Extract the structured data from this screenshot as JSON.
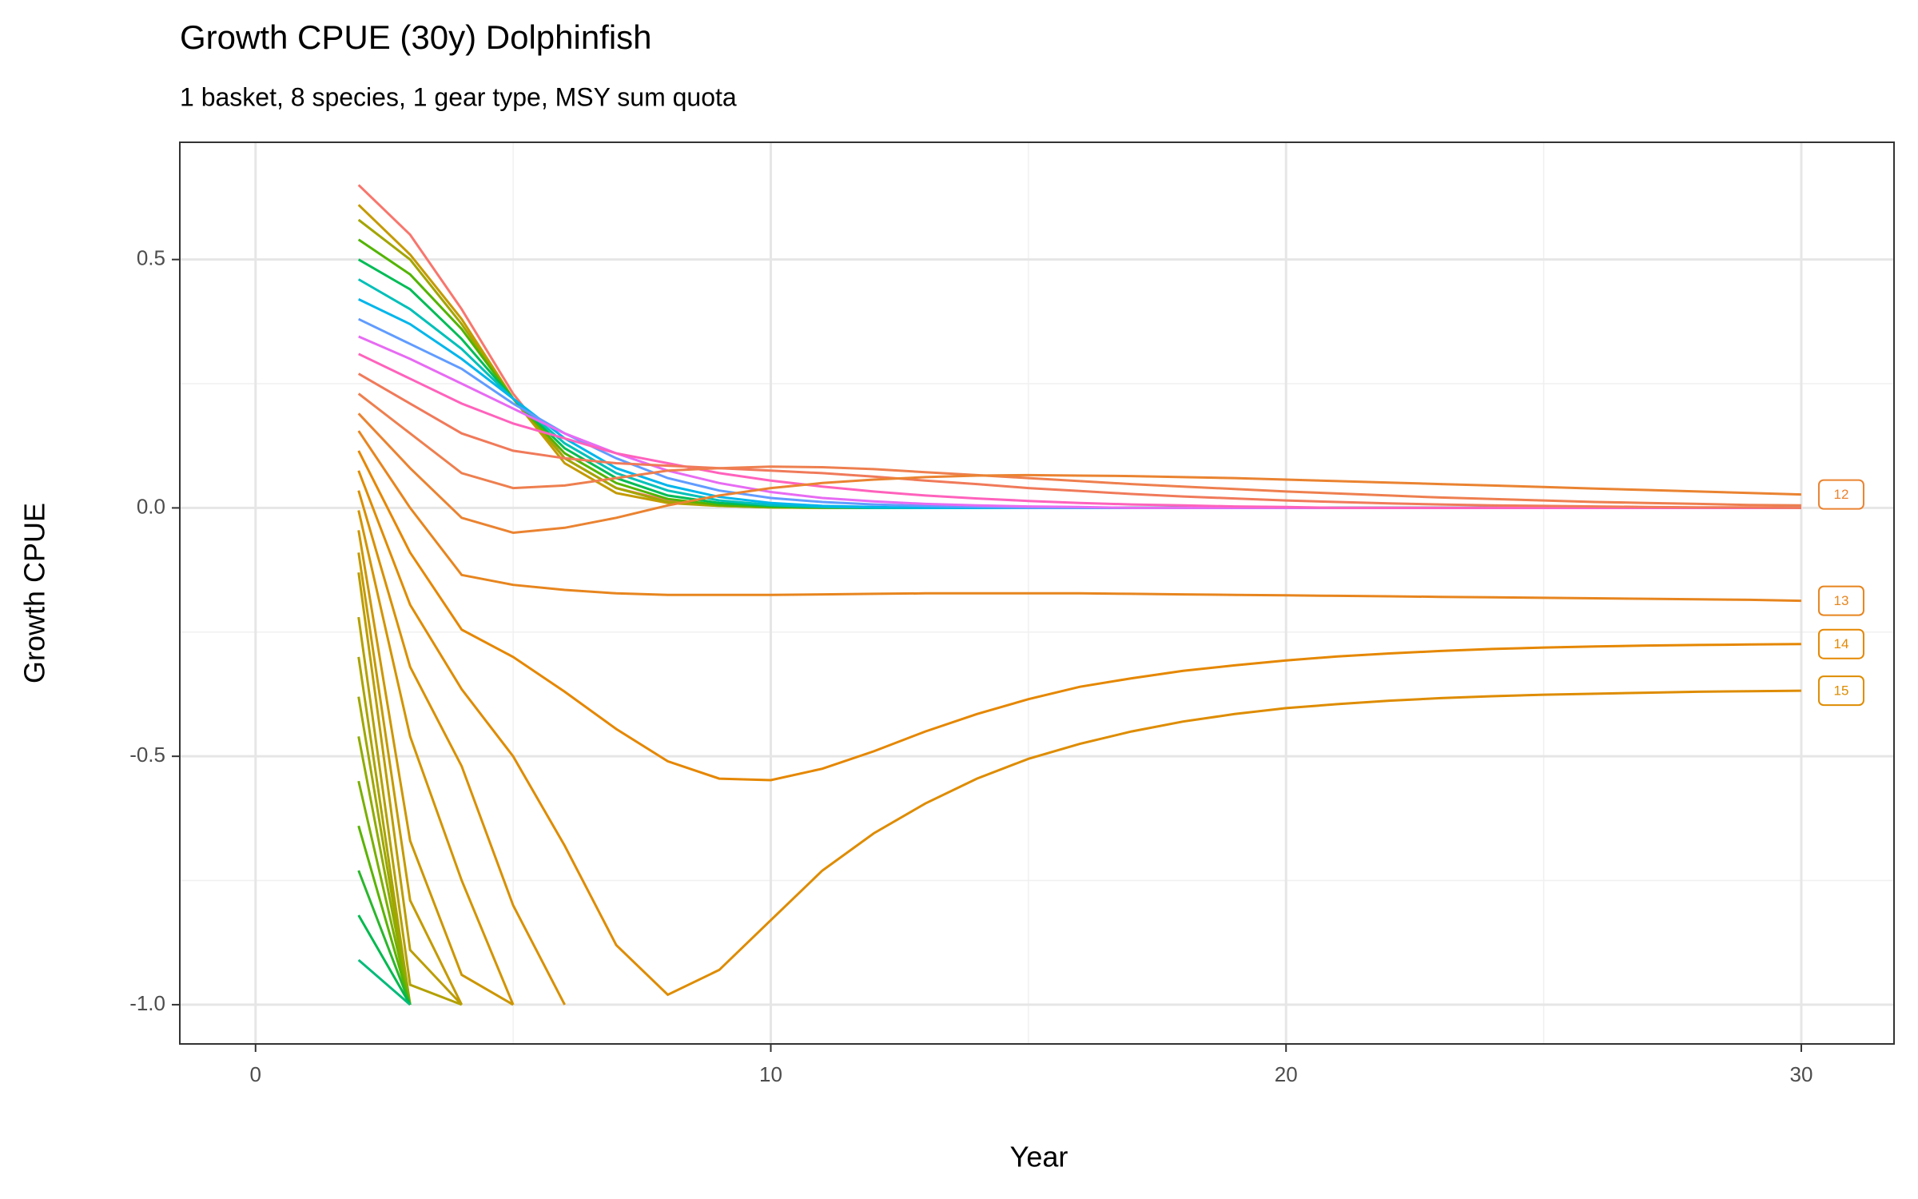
{
  "chart_data": {
    "type": "line",
    "title": "Growth CPUE (30y) Dolphinfish",
    "subtitle": "1 basket, 8 species, 1 gear type, MSY sum quota",
    "x_label": "Year",
    "y_label": "Growth CPUE",
    "xlim": [
      -1.47,
      31.8
    ],
    "ylim": [
      -1.079,
      0.736
    ],
    "xticks": [
      0,
      10,
      20,
      30
    ],
    "yticks": [
      {
        "value": -1,
        "label": "-1.0"
      },
      -0.5,
      {
        "value": 0,
        "label": "0.0"
      },
      0.5
    ],
    "x_minor_ticks": [
      5,
      15,
      25
    ],
    "y_minor_ticks": [
      -0.75,
      -0.25,
      0.25
    ],
    "grid": true,
    "x": [
      2,
      3,
      4,
      5,
      6,
      7,
      8,
      9,
      10,
      11,
      12,
      13,
      14,
      15,
      16,
      17,
      18,
      19,
      20,
      21,
      22,
      23,
      24,
      25,
      26,
      27,
      28,
      29,
      30
    ],
    "series": [
      {
        "color": "#f8766d",
        "values": [
          0.65,
          0.55,
          0.4,
          0.23,
          0.1,
          0.04,
          0.015,
          0.006,
          0.003,
          0.001,
          0,
          0,
          0,
          0,
          0,
          0,
          0,
          0,
          0,
          0,
          0,
          0,
          0,
          0,
          0,
          0,
          0,
          0,
          0
        ]
      },
      {
        "color": "#c49a00",
        "values": [
          0.61,
          0.51,
          0.38,
          0.22,
          0.09,
          0.03,
          0.01,
          0.004,
          0.001,
          0,
          0,
          0,
          0,
          0,
          0,
          0,
          0,
          0,
          0,
          0,
          0,
          0,
          0,
          0,
          0,
          0,
          0,
          0,
          0
        ]
      },
      {
        "color": "#a3a500",
        "values": [
          0.58,
          0.5,
          0.37,
          0.22,
          0.1,
          0.04,
          0.012,
          0.004,
          0.001,
          0,
          0,
          0,
          0,
          0,
          0,
          0,
          0,
          0,
          0,
          0,
          0,
          0,
          0,
          0,
          0,
          0,
          0,
          0,
          0
        ]
      },
      {
        "color": "#53b400",
        "values": [
          0.54,
          0.47,
          0.36,
          0.22,
          0.11,
          0.05,
          0.018,
          0.006,
          0.002,
          0.001,
          0,
          0,
          0,
          0,
          0,
          0,
          0,
          0,
          0,
          0,
          0,
          0,
          0,
          0,
          0,
          0,
          0,
          0,
          0
        ]
      },
      {
        "color": "#00bc56",
        "values": [
          0.5,
          0.44,
          0.34,
          0.22,
          0.12,
          0.06,
          0.025,
          0.01,
          0.004,
          0.001,
          0,
          0,
          0,
          0,
          0,
          0,
          0,
          0,
          0,
          0,
          0,
          0,
          0,
          0,
          0,
          0,
          0,
          0,
          0
        ]
      },
      {
        "color": "#00c0b8",
        "values": [
          0.46,
          0.4,
          0.32,
          0.22,
          0.13,
          0.07,
          0.035,
          0.015,
          0.006,
          0.002,
          0,
          0,
          0,
          0,
          0,
          0,
          0,
          0,
          0,
          0,
          0,
          0,
          0,
          0,
          0,
          0,
          0,
          0,
          0
        ]
      },
      {
        "color": "#00b6eb",
        "values": [
          0.42,
          0.37,
          0.3,
          0.22,
          0.14,
          0.08,
          0.045,
          0.022,
          0.01,
          0.004,
          0.002,
          0,
          0,
          0,
          0,
          0,
          0,
          0,
          0,
          0,
          0,
          0,
          0,
          0,
          0,
          0,
          0,
          0,
          0
        ]
      },
      {
        "color": "#619cff",
        "values": [
          0.38,
          0.33,
          0.28,
          0.21,
          0.15,
          0.1,
          0.06,
          0.035,
          0.02,
          0.012,
          0.007,
          0.004,
          0.002,
          0,
          0,
          0,
          0,
          0,
          0,
          0,
          0,
          0,
          0,
          0,
          0,
          0,
          0,
          0,
          0
        ]
      },
      {
        "color": "#e76bf3",
        "values": [
          0.345,
          0.3,
          0.25,
          0.2,
          0.15,
          0.11,
          0.075,
          0.05,
          0.032,
          0.02,
          0.013,
          0.008,
          0.005,
          0.003,
          0.002,
          0,
          0,
          0,
          0,
          0,
          0,
          0,
          0,
          0,
          0,
          0,
          0,
          0,
          0
        ]
      },
      {
        "color": "#ff62bc",
        "values": [
          0.31,
          0.26,
          0.21,
          0.17,
          0.14,
          0.11,
          0.09,
          0.07,
          0.055,
          0.043,
          0.033,
          0.025,
          0.019,
          0.014,
          0.01,
          0.007,
          0.005,
          0.003,
          0.002,
          0,
          0,
          0,
          0,
          0,
          0,
          0,
          0,
          0,
          0
        ]
      },
      {
        "color": "#f07a5a",
        "values": [
          0.27,
          0.21,
          0.15,
          0.115,
          0.1,
          0.09,
          0.085,
          0.08,
          0.075,
          0.07,
          0.063,
          0.055,
          0.048,
          0.04,
          0.034,
          0.028,
          0.023,
          0.019,
          0.015,
          0.012,
          0.009,
          0.007,
          0.005,
          0.004,
          0.003,
          0.002,
          0.001,
          0.001,
          0
        ]
      },
      {
        "color": "#ee7f4f",
        "values": [
          0.23,
          0.15,
          0.07,
          0.04,
          0.045,
          0.06,
          0.075,
          0.08,
          0.083,
          0.082,
          0.078,
          0.072,
          0.066,
          0.06,
          0.054,
          0.048,
          0.043,
          0.038,
          0.033,
          0.029,
          0.025,
          0.021,
          0.018,
          0.015,
          0.012,
          0.01,
          0.008,
          0.006,
          0.005
        ]
      },
      {
        "name": "12",
        "color": "#ea8331",
        "values": [
          0.19,
          0.08,
          -0.02,
          -0.05,
          -0.04,
          -0.02,
          0.005,
          0.025,
          0.04,
          0.05,
          0.057,
          0.062,
          0.065,
          0.066,
          0.065,
          0.064,
          0.062,
          0.06,
          0.057,
          0.054,
          0.051,
          0.048,
          0.045,
          0.042,
          0.039,
          0.036,
          0.033,
          0.03,
          0.027
        ]
      },
      {
        "name": "13",
        "color": "#e7851e",
        "values": [
          0.155,
          0.0,
          -0.135,
          -0.155,
          -0.165,
          -0.172,
          -0.175,
          -0.175,
          -0.175,
          -0.174,
          -0.173,
          -0.172,
          -0.172,
          -0.172,
          -0.172,
          -0.173,
          -0.174,
          -0.175,
          -0.176,
          -0.177,
          -0.178,
          -0.179,
          -0.18,
          -0.181,
          -0.182,
          -0.183,
          -0.184,
          -0.185,
          -0.187
        ]
      },
      {
        "name": "14",
        "color": "#e58700",
        "values": [
          0.115,
          -0.09,
          -0.245,
          -0.3,
          -0.37,
          -0.445,
          -0.51,
          -0.545,
          -0.548,
          -0.525,
          -0.49,
          -0.45,
          -0.415,
          -0.385,
          -0.36,
          -0.343,
          -0.328,
          -0.317,
          -0.307,
          -0.299,
          -0.293,
          -0.288,
          -0.284,
          -0.281,
          -0.279,
          -0.277,
          -0.276,
          -0.275,
          -0.274
        ]
      },
      {
        "name": "15",
        "color": "#de8c00",
        "values": [
          0.075,
          -0.195,
          -0.365,
          -0.5,
          -0.68,
          -0.88,
          -0.98,
          -0.93,
          -0.83,
          -0.73,
          -0.655,
          -0.595,
          -0.545,
          -0.505,
          -0.475,
          -0.45,
          -0.43,
          -0.415,
          -0.403,
          -0.395,
          -0.388,
          -0.383,
          -0.379,
          -0.376,
          -0.374,
          -0.372,
          -0.37,
          -0.369,
          -0.368
        ]
      },
      {
        "color": "#d89000",
        "values": [
          0.035,
          -0.32,
          -0.52,
          -0.8,
          -1.0,
          null,
          null,
          null,
          null,
          null,
          null,
          null,
          null,
          null,
          null,
          null,
          null,
          null,
          null,
          null,
          null,
          null,
          null,
          null,
          null,
          null,
          null,
          null,
          null
        ]
      },
      {
        "color": "#d29400",
        "values": [
          -0.005,
          -0.46,
          -0.75,
          -1.0,
          null,
          null,
          null,
          null,
          null,
          null,
          null,
          null,
          null,
          null,
          null,
          null,
          null,
          null,
          null,
          null,
          null,
          null,
          null,
          null,
          null,
          null,
          null,
          null,
          null
        ]
      },
      {
        "color": "#cc9600",
        "values": [
          -0.045,
          -0.67,
          -0.94,
          -1.0,
          null,
          null,
          null,
          null,
          null,
          null,
          null,
          null,
          null,
          null,
          null,
          null,
          null,
          null,
          null,
          null,
          null,
          null,
          null,
          null,
          null,
          null,
          null,
          null,
          null
        ]
      },
      {
        "color": "#c49a00",
        "values": [
          -0.09,
          -0.79,
          -1.0,
          null,
          null,
          null,
          null,
          null,
          null,
          null,
          null,
          null,
          null,
          null,
          null,
          null,
          null,
          null,
          null,
          null,
          null,
          null,
          null,
          null,
          null,
          null,
          null,
          null,
          null
        ]
      },
      {
        "color": "#bb9d00",
        "values": [
          -0.13,
          -0.89,
          -1.0,
          null,
          null,
          null,
          null,
          null,
          null,
          null,
          null,
          null,
          null,
          null,
          null,
          null,
          null,
          null,
          null,
          null,
          null,
          null,
          null,
          null,
          null,
          null,
          null,
          null,
          null
        ]
      },
      {
        "color": "#b3a000",
        "values": [
          -0.22,
          -0.96,
          -1.0,
          null,
          null,
          null,
          null,
          null,
          null,
          null,
          null,
          null,
          null,
          null,
          null,
          null,
          null,
          null,
          null,
          null,
          null,
          null,
          null,
          null,
          null,
          null,
          null,
          null,
          null
        ]
      },
      {
        "color": "#a9a300",
        "values": [
          -0.3,
          -1.0,
          null,
          null,
          null,
          null,
          null,
          null,
          null,
          null,
          null,
          null,
          null,
          null,
          null,
          null,
          null,
          null,
          null,
          null,
          null,
          null,
          null,
          null,
          null,
          null,
          null,
          null,
          null
        ]
      },
      {
        "color": "#9ea700",
        "values": [
          -0.38,
          -1.0,
          null,
          null,
          null,
          null,
          null,
          null,
          null,
          null,
          null,
          null,
          null,
          null,
          null,
          null,
          null,
          null,
          null,
          null,
          null,
          null,
          null,
          null,
          null,
          null,
          null,
          null,
          null
        ]
      },
      {
        "color": "#8fab00",
        "values": [
          -0.46,
          -1.0,
          null,
          null,
          null,
          null,
          null,
          null,
          null,
          null,
          null,
          null,
          null,
          null,
          null,
          null,
          null,
          null,
          null,
          null,
          null,
          null,
          null,
          null,
          null,
          null,
          null,
          null,
          null
        ]
      },
      {
        "color": "#7aaf00",
        "values": [
          -0.55,
          -1.0,
          null,
          null,
          null,
          null,
          null,
          null,
          null,
          null,
          null,
          null,
          null,
          null,
          null,
          null,
          null,
          null,
          null,
          null,
          null,
          null,
          null,
          null,
          null,
          null,
          null,
          null,
          null
        ]
      },
      {
        "color": "#5bb300",
        "values": [
          -0.64,
          -1.0,
          null,
          null,
          null,
          null,
          null,
          null,
          null,
          null,
          null,
          null,
          null,
          null,
          null,
          null,
          null,
          null,
          null,
          null,
          null,
          null,
          null,
          null,
          null,
          null,
          null,
          null,
          null
        ]
      },
      {
        "color": "#2bb62c",
        "values": [
          -0.73,
          -1.0,
          null,
          null,
          null,
          null,
          null,
          null,
          null,
          null,
          null,
          null,
          null,
          null,
          null,
          null,
          null,
          null,
          null,
          null,
          null,
          null,
          null,
          null,
          null,
          null,
          null,
          null,
          null
        ]
      },
      {
        "color": "#00b94e",
        "values": [
          -0.82,
          -1.0,
          null,
          null,
          null,
          null,
          null,
          null,
          null,
          null,
          null,
          null,
          null,
          null,
          null,
          null,
          null,
          null,
          null,
          null,
          null,
          null,
          null,
          null,
          null,
          null,
          null,
          null,
          null
        ]
      },
      {
        "color": "#00bb7a",
        "values": [
          -0.91,
          -1.0,
          null,
          null,
          null,
          null,
          null,
          null,
          null,
          null,
          null,
          null,
          null,
          null,
          null,
          null,
          null,
          null,
          null,
          null,
          null,
          null,
          null,
          null,
          null,
          null,
          null,
          null,
          null
        ]
      }
    ]
  }
}
